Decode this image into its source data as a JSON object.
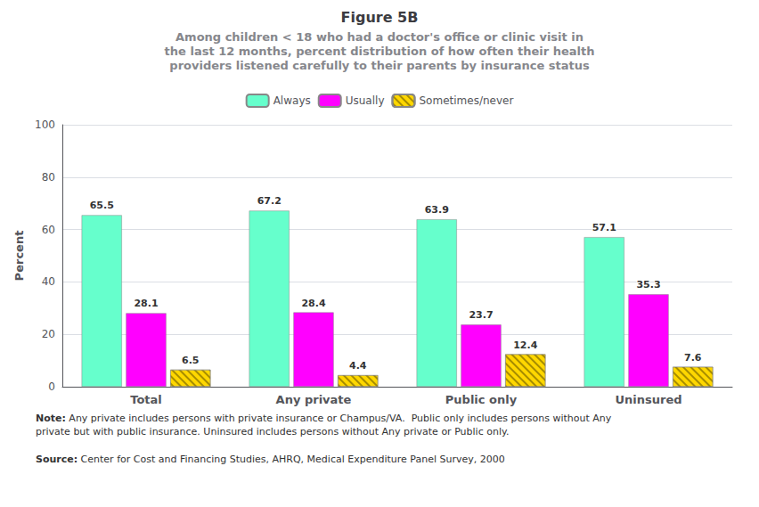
{
  "chart_data": {
    "type": "bar",
    "title": "Figure 5B",
    "subtitle": "Among children < 18 who had a doctor's office or clinic visit in\nthe last 12 months, percent distribution of how often their health\nproviders listened carefully to their parents by insurance status",
    "categories": [
      "Total",
      "Any private",
      "Public only",
      "Uninsured"
    ],
    "series": [
      {
        "name": "Always",
        "color": "#66FFCC",
        "values": [
          65.5,
          67.2,
          63.9,
          57.1
        ]
      },
      {
        "name": "Usually",
        "color": "#FF00FF",
        "values": [
          28.1,
          28.4,
          23.7,
          35.3
        ]
      },
      {
        "name": "Sometimes/never",
        "color": "#FFD700",
        "values": [
          6.5,
          4.4,
          12.4,
          7.6
        ]
      }
    ],
    "ylabel": "Percent",
    "ylim": [
      0,
      100
    ],
    "yticks": [
      0,
      20,
      40,
      60,
      80,
      100
    ],
    "grid": true,
    "legend": "top",
    "data_labels": true,
    "annotations": [
      {
        "label": "Note:",
        "text": " Any private includes persons with private insurance or Champus/VA.  Public only includes persons without Any private but with public insurance. Uninsured includes persons without Any private or Public only."
      },
      {
        "label": "Source:",
        "text": " Center for Cost and Financing Studies, AHRQ, Medical Expenditure Panel Survey, 2000"
      }
    ]
  }
}
